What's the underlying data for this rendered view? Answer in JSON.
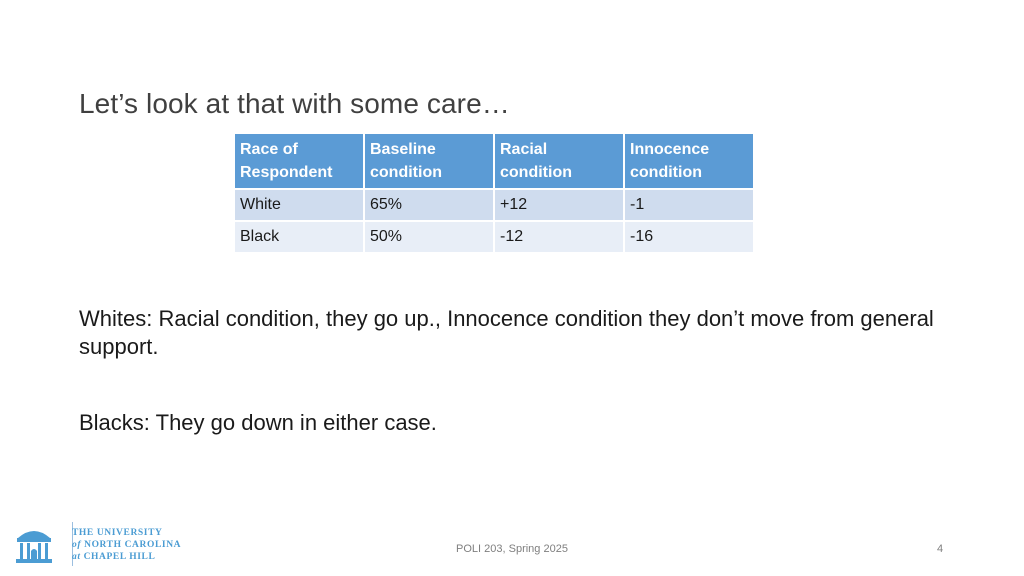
{
  "slide": {
    "title": "Let’s look at that with some care…",
    "page_number": "4",
    "footer": "POLI 203, Spring 2025"
  },
  "table": {
    "headers": [
      [
        "Race of",
        "Respondent"
      ],
      [
        "Baseline",
        "condition"
      ],
      [
        "Racial",
        "condition"
      ],
      [
        "Innocence",
        "condition"
      ]
    ],
    "rows": [
      [
        "White",
        "65%",
        "+12",
        "-1"
      ],
      [
        "Black",
        "50%",
        "-12",
        "-16"
      ]
    ]
  },
  "paragraphs": [
    "Whites: Racial condition, they go up., Innocence condition they don’t move from general support.",
    "Blacks: They go down in either case."
  ],
  "logo": {
    "line1": "THE UNIVERSITY",
    "line2_italic": "of",
    "line2": "NORTH CAROLINA",
    "line3_italic": "at",
    "line3": "CHAPEL HILL"
  },
  "colors": {
    "header_bg": "#5b9bd5",
    "row_dark": "#cfdcee",
    "row_light": "#e8eef7",
    "logo_blue": "#4b9cd3"
  }
}
